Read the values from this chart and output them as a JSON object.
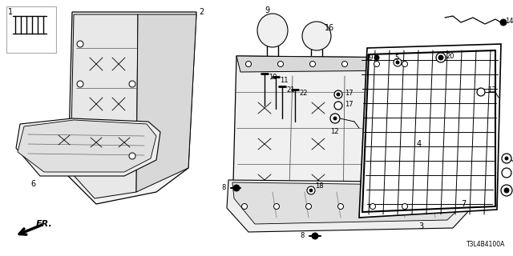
{
  "bg_color": "#ffffff",
  "diagram_code": "T3L4B4100A",
  "figsize": [
    6.4,
    3.2
  ],
  "dpi": 100
}
